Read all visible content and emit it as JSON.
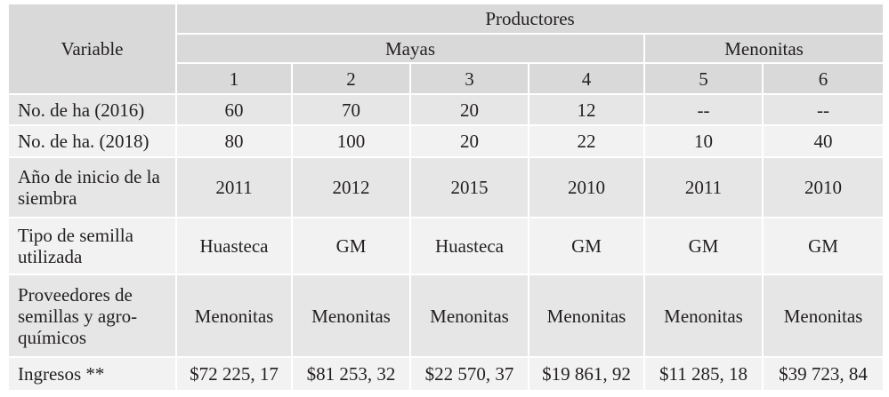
{
  "table": {
    "header": {
      "variable": "Variable",
      "productores": "Productores",
      "groups": [
        "Mayas",
        "Menonitas"
      ],
      "columns": [
        "1",
        "2",
        "3",
        "4",
        "5",
        "6"
      ]
    },
    "rows": [
      {
        "label": "No. de ha (2016)",
        "values": [
          "60",
          "70",
          "20",
          "12",
          "--",
          "--"
        ]
      },
      {
        "label": "No. de ha. (2018)",
        "values": [
          "80",
          "100",
          "20",
          "22",
          "10",
          "40"
        ]
      },
      {
        "label": "Año de inicio de la siembra",
        "values": [
          "2011",
          "2012",
          "2015",
          "2010",
          "2011",
          "2010"
        ]
      },
      {
        "label": "Tipo de semilla utilizada",
        "values": [
          "Huasteca",
          "GM",
          "Huasteca",
          "GM",
          "GM",
          "GM"
        ]
      },
      {
        "label": "Proveedores de semillas y agro-químicos",
        "values": [
          "Menonitas",
          "Menonitas",
          "Menonitas",
          "Menonitas",
          "Menonitas",
          "Menonitas"
        ]
      },
      {
        "label": "Ingresos **",
        "values": [
          "$72 225, 17",
          "$81 253, 32",
          "$22 570, 37",
          "$19 861, 92",
          "$11 285, 18",
          "$39 723, 84"
        ]
      }
    ]
  }
}
